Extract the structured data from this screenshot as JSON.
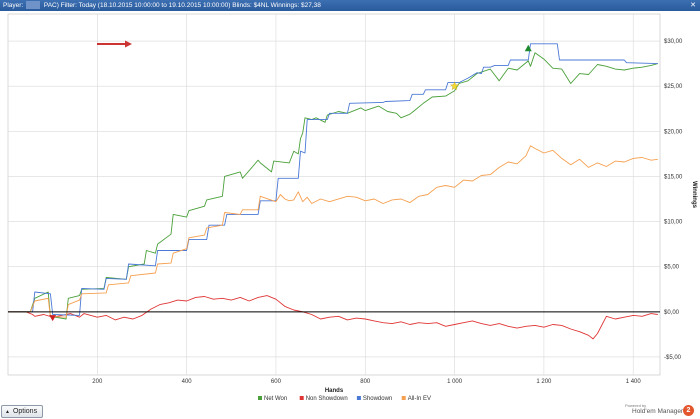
{
  "titlebar": {
    "player_label": "Player:",
    "filter_text": "PAC) Filter: Today (18.10.2015 10:00:00 to 19.10.2015 10:00:00) Blinds: $4NL  Winnings: $27,38",
    "close_glyph": "✕"
  },
  "footer": {
    "options_label": "Options",
    "powered_by": "Powered by",
    "brand": "Hold'em Manager",
    "brand_number": "2"
  },
  "colors": {
    "net_won": "#4aa03a",
    "non_showdown": "#e03535",
    "showdown": "#4a78d6",
    "all_in_ev": "#f5a050",
    "zero_line": "#000000",
    "grid": "#d9d9d9",
    "arrow": "#cc3333"
  },
  "chart_data": {
    "type": "line",
    "xlabel": "Hands",
    "ylabel": "Winnings",
    "xlim": [
      0,
      1460
    ],
    "ylim": [
      -7,
      33
    ],
    "x_ticks": [
      200,
      400,
      600,
      800,
      1000,
      1200,
      1400
    ],
    "x_tick_labels": [
      "200",
      "400",
      "600",
      "800",
      "1 000",
      "1 200",
      "1 400"
    ],
    "y_ticks": [
      -5,
      0,
      5,
      10,
      15,
      20,
      25,
      30
    ],
    "y_tick_labels": [
      "-$5,00",
      "$0,00",
      "$5,00",
      "$10,00",
      "$15,00",
      "$20,00",
      "$25,00",
      "$30,00"
    ],
    "grid": true,
    "legend_position": "bottom",
    "series": [
      {
        "name": "Net Won",
        "color": "#4aa03a",
        "x": [
          0,
          50,
          60,
          90,
          95,
          130,
          135,
          160,
          165,
          215,
          220,
          265,
          270,
          305,
          310,
          330,
          335,
          365,
          370,
          400,
          405,
          440,
          445,
          480,
          485,
          520,
          525,
          560,
          565,
          590,
          595,
          630,
          640,
          650,
          655,
          660,
          665,
          680,
          690,
          710,
          715,
          740,
          760,
          790,
          800,
          830,
          850,
          870,
          880,
          900,
          910,
          930,
          950,
          980,
          1000,
          1010,
          1030,
          1050,
          1080,
          1100,
          1120,
          1140,
          1165,
          1170,
          1180,
          1200,
          1220,
          1240,
          1260,
          1280,
          1300,
          1320,
          1340,
          1360,
          1380,
          1400,
          1420,
          1440,
          1455
        ],
        "y": [
          0,
          0,
          1.5,
          2.2,
          -0.5,
          -0.8,
          1.5,
          1.8,
          2.5,
          2.6,
          3.8,
          3.6,
          5.0,
          5.3,
          6.8,
          6.5,
          7.5,
          8.6,
          10.8,
          10.5,
          11.2,
          11.7,
          12.4,
          12.8,
          15.0,
          15.5,
          14.8,
          16.8,
          16.5,
          15.5,
          16.7,
          16.5,
          17.8,
          17.5,
          19.2,
          19.8,
          21.5,
          21.3,
          21.5,
          21.0,
          21.8,
          22.2,
          22.0,
          22.6,
          22.3,
          22.8,
          22.2,
          22.0,
          21.5,
          21.9,
          22.3,
          23.1,
          23.8,
          23.9,
          24.5,
          25.3,
          25.6,
          26.4,
          26.9,
          25.6,
          27.0,
          26.8,
          27.8,
          27.2,
          28.7,
          28.0,
          27.0,
          26.9,
          25.3,
          26.4,
          26.3,
          27.4,
          27.2,
          26.9,
          26.8,
          27.0,
          27.1,
          27.3,
          27.5
        ]
      },
      {
        "name": "Non Showdown",
        "color": "#e03535",
        "x": [
          0,
          40,
          55,
          60,
          80,
          100,
          120,
          140,
          160,
          170,
          200,
          220,
          240,
          260,
          280,
          300,
          320,
          340,
          360,
          380,
          400,
          420,
          440,
          460,
          480,
          500,
          520,
          540,
          560,
          580,
          600,
          620,
          640,
          660,
          680,
          700,
          720,
          740,
          760,
          780,
          800,
          820,
          840,
          860,
          880,
          900,
          920,
          940,
          960,
          980,
          1000,
          1020,
          1040,
          1060,
          1080,
          1100,
          1120,
          1140,
          1160,
          1180,
          1200,
          1220,
          1240,
          1260,
          1280,
          1300,
          1310,
          1320,
          1340,
          1360,
          1380,
          1400,
          1420,
          1440,
          1455
        ],
        "y": [
          0,
          0,
          -0.3,
          -0.5,
          -0.3,
          -0.6,
          -0.4,
          -0.2,
          -0.6,
          -0.2,
          -0.6,
          -0.4,
          -0.9,
          -0.6,
          -0.8,
          -0.4,
          0.3,
          0.8,
          1.0,
          1.3,
          1.2,
          1.6,
          1.7,
          1.4,
          1.5,
          1.3,
          1.6,
          1.2,
          1.6,
          1.8,
          1.4,
          0.6,
          0.2,
          0.0,
          -0.3,
          -0.8,
          -0.6,
          -0.5,
          -0.9,
          -0.7,
          -0.8,
          -1.0,
          -1.2,
          -1.3,
          -1.1,
          -1.4,
          -1.2,
          -1.3,
          -1.2,
          -1.6,
          -1.4,
          -1.2,
          -1.0,
          -1.3,
          -1.5,
          -1.3,
          -1.6,
          -1.8,
          -1.6,
          -1.5,
          -1.7,
          -1.4,
          -1.5,
          -1.9,
          -2.2,
          -2.6,
          -3.0,
          -2.4,
          -0.5,
          -0.8,
          -0.6,
          -0.4,
          -0.5,
          -0.2,
          -0.3
        ]
      },
      {
        "name": "Showdown",
        "color": "#4a78d6",
        "x": [
          0,
          55,
          60,
          95,
          100,
          160,
          165,
          215,
          220,
          265,
          270,
          330,
          335,
          400,
          405,
          445,
          450,
          485,
          490,
          560,
          565,
          600,
          605,
          650,
          655,
          665,
          670,
          715,
          720,
          760,
          765,
          840,
          845,
          900,
          905,
          930,
          935,
          980,
          985,
          1000,
          1010,
          1030,
          1050,
          1060,
          1065,
          1080,
          1090,
          1120,
          1125,
          1165,
          1170,
          1230,
          1235,
          1300,
          1305,
          1380,
          1385,
          1455
        ],
        "y": [
          0,
          0,
          2.2,
          2.0,
          -0.3,
          -0.4,
          2.6,
          2.5,
          3.7,
          3.6,
          5.3,
          5.1,
          6.8,
          6.8,
          8.0,
          8.0,
          9.6,
          9.6,
          10.8,
          10.8,
          12.3,
          12.3,
          14.8,
          14.8,
          17.8,
          17.6,
          21.3,
          21.3,
          22.0,
          22.0,
          23.1,
          23.2,
          23.3,
          23.4,
          24.1,
          24.1,
          24.6,
          24.6,
          25.4,
          25.4,
          25.4,
          25.9,
          26.5,
          26.4,
          27.1,
          27.1,
          27.3,
          27.3,
          27.9,
          27.9,
          29.7,
          29.7,
          27.9,
          27.9,
          27.9,
          27.9,
          27.6,
          27.5
        ]
      },
      {
        "name": "All-In EV",
        "color": "#f5a050",
        "x": [
          0,
          50,
          60,
          90,
          95,
          130,
          135,
          160,
          165,
          220,
          225,
          270,
          275,
          330,
          335,
          365,
          370,
          400,
          405,
          440,
          445,
          480,
          485,
          520,
          525,
          560,
          565,
          600,
          610,
          620,
          630,
          640,
          650,
          660,
          670,
          680,
          700,
          720,
          760,
          780,
          800,
          820,
          840,
          860,
          880,
          900,
          920,
          940,
          960,
          980,
          1000,
          1020,
          1040,
          1060,
          1080,
          1100,
          1120,
          1140,
          1160,
          1170,
          1180,
          1200,
          1220,
          1240,
          1260,
          1280,
          1300,
          1320,
          1340,
          1360,
          1380,
          1400,
          1420,
          1440,
          1455
        ],
        "y": [
          0,
          0,
          1.2,
          1.5,
          -0.5,
          -0.6,
          0.8,
          1.3,
          2.0,
          2.1,
          3.0,
          3.2,
          4.0,
          4.3,
          5.3,
          5.4,
          6.5,
          7.0,
          8.2,
          8.5,
          9.3,
          9.6,
          11.0,
          10.8,
          11.3,
          11.3,
          12.8,
          12.2,
          13.0,
          12.5,
          12.3,
          12.4,
          13.3,
          12.2,
          12.7,
          12.0,
          12.5,
          12.2,
          12.8,
          12.7,
          12.3,
          12.5,
          12.0,
          12.4,
          12.5,
          12.1,
          12.8,
          13.0,
          13.8,
          14.0,
          13.8,
          14.6,
          14.5,
          15.1,
          15.2,
          16.0,
          16.6,
          16.4,
          17.3,
          18.4,
          18.1,
          17.6,
          17.9,
          17.0,
          16.3,
          16.9,
          16.0,
          16.5,
          16.1,
          16.7,
          16.6,
          17.0,
          17.1,
          16.8,
          16.9
        ]
      }
    ],
    "markers": [
      {
        "name": "min-marker",
        "shape": "triangle-down",
        "x": 100,
        "y": -0.7,
        "color": "#cc2222"
      },
      {
        "name": "max-marker",
        "shape": "triangle-up",
        "x": 1165,
        "y": 29.2,
        "color": "#1f8a2c"
      },
      {
        "name": "star-marker",
        "shape": "star",
        "x": 1000,
        "y": 25.0,
        "color": "#f2d835"
      }
    ]
  }
}
